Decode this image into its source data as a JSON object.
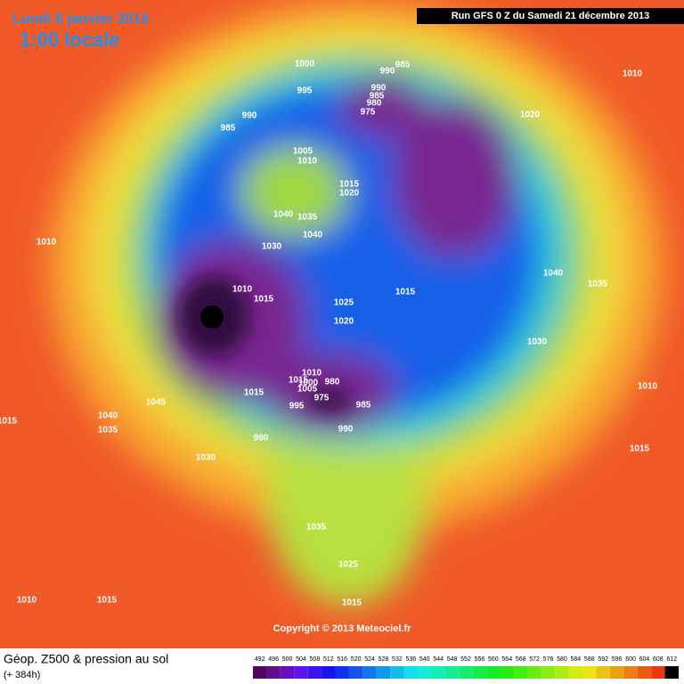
{
  "header": {
    "date": "Lundi 6 janvier 2014",
    "time": "1:00 locale",
    "run": "Run GFS 0 Z du Samedi 21 décembre 2013"
  },
  "copyright": "Copyright © 2013 Meteociel.fr",
  "footer": {
    "title": "Géop. Z500 & pression au sol",
    "lead": "(+ 384h)"
  },
  "legend": {
    "scale": [
      492,
      496,
      500,
      504,
      508,
      512,
      516,
      520,
      524,
      528,
      532,
      536,
      540,
      544,
      548,
      552,
      556,
      560,
      564,
      568,
      572,
      576,
      580,
      584,
      588,
      592,
      596,
      600,
      604,
      608,
      612
    ]
  },
  "isobars": [
    1000,
    990,
    985,
    995,
    990,
    985,
    980,
    975,
    990,
    985,
    1020,
    1010,
    1005,
    1010,
    1015,
    1020,
    1040,
    1035,
    1040,
    1010,
    1030,
    1010,
    1015,
    1015,
    1025,
    1020,
    1040,
    1035,
    1030,
    1010,
    1015,
    1005,
    1000,
    980,
    975,
    985,
    995,
    1015,
    990,
    990,
    1045,
    1040,
    1035,
    1030,
    1015,
    1010,
    1015,
    1035,
    1025,
    1015,
    1010,
    1015
  ]
}
